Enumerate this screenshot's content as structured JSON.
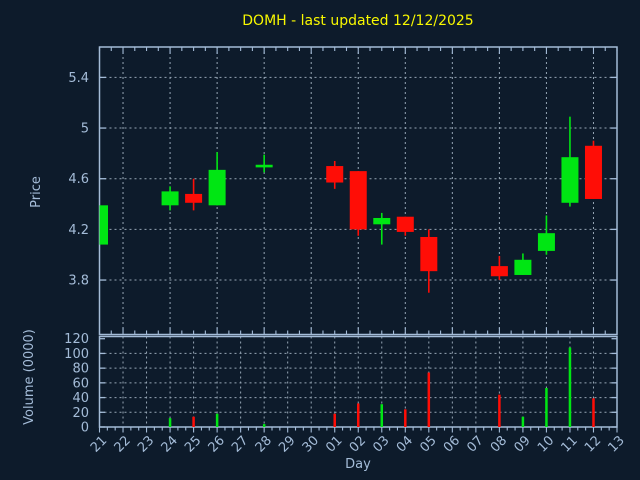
{
  "title": "DOMH - last updated 12/12/2025",
  "symbol": "DOMH",
  "last_updated": "12/12/2025",
  "colors": {
    "background": "#0d1b2b",
    "axis": "#a4bcd8",
    "grid": "#97a7b6",
    "up": "#00e613",
    "down": "#ff0d06",
    "title": "#f8f800"
  },
  "chart_data": {
    "type": "candlestick",
    "title": "DOMH - last updated 12/12/2025",
    "xlabel": "Day",
    "ylabel_price": "Price",
    "ylabel_volume": "Volume (0000)",
    "legend": "none",
    "grid": "dashed; price pane vertical lines every 2nd day, volume pane every day",
    "x_categories": [
      "21",
      "22",
      "23",
      "24",
      "25",
      "26",
      "27",
      "28",
      "29",
      "30",
      "01",
      "02",
      "03",
      "04",
      "05",
      "06",
      "07",
      "08",
      "09",
      "10",
      "11",
      "12",
      "13"
    ],
    "price_tick_labels": [
      "5.4",
      "5",
      "4.6",
      "4.2",
      "3.8"
    ],
    "price_tick_values": [
      5.4,
      5.0,
      4.6,
      4.2,
      3.8
    ],
    "price_ylim": [
      3.37,
      5.64
    ],
    "volume_tick_labels": [
      "120",
      "100",
      "80",
      "60",
      "40",
      "20",
      "0"
    ],
    "volume_tick_values": [
      120,
      100,
      80,
      60,
      40,
      20,
      0
    ],
    "volume_ylim": [
      0,
      123
    ],
    "candles": [
      {
        "day": "21",
        "open": 4.08,
        "high": 4.39,
        "low": 4.08,
        "close": 4.39,
        "volume": null
      },
      {
        "day": "24",
        "open": 4.39,
        "high": 4.54,
        "low": 4.35,
        "close": 4.5,
        "volume": 12
      },
      {
        "day": "25",
        "open": 4.48,
        "high": 4.6,
        "low": 4.35,
        "close": 4.41,
        "volume": 14
      },
      {
        "day": "26",
        "open": 4.39,
        "high": 4.81,
        "low": 4.39,
        "close": 4.67,
        "volume": 18
      },
      {
        "day": "28",
        "open": 4.7,
        "high": 4.79,
        "low": 4.65,
        "close": 4.7,
        "volume": 4
      },
      {
        "day": "01",
        "open": 4.7,
        "high": 4.74,
        "low": 4.52,
        "close": 4.57,
        "volume": 18
      },
      {
        "day": "02",
        "open": 4.66,
        "high": 4.66,
        "low": 4.15,
        "close": 4.2,
        "volume": 32
      },
      {
        "day": "03",
        "open": 4.24,
        "high": 4.33,
        "low": 4.08,
        "close": 4.29,
        "volume": 31
      },
      {
        "day": "04",
        "open": 4.3,
        "high": 4.3,
        "low": 4.15,
        "close": 4.18,
        "volume": 24
      },
      {
        "day": "05",
        "open": 4.14,
        "high": 4.2,
        "low": 3.7,
        "close": 3.87,
        "volume": 74
      },
      {
        "day": "08",
        "open": 3.91,
        "high": 3.99,
        "low": 3.8,
        "close": 3.83,
        "volume": 44
      },
      {
        "day": "09",
        "open": 3.84,
        "high": 4.01,
        "low": 3.84,
        "close": 3.96,
        "volume": 14
      },
      {
        "day": "10",
        "open": 4.03,
        "high": 4.31,
        "low": 4.0,
        "close": 4.17,
        "volume": 53
      },
      {
        "day": "11",
        "open": 4.41,
        "high": 5.09,
        "low": 4.38,
        "close": 4.77,
        "volume": 108
      },
      {
        "day": "12",
        "open": 4.86,
        "high": 4.9,
        "low": 4.44,
        "close": 4.44,
        "volume": 39
      }
    ]
  }
}
